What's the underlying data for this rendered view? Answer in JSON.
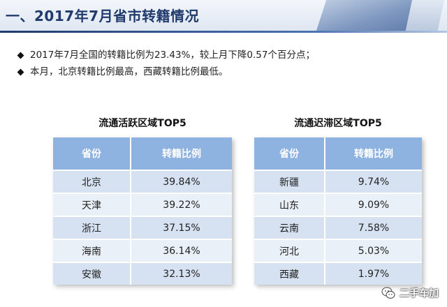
{
  "header": {
    "title": "一、2017年7月省市转籍情况"
  },
  "bullets": [
    "2017年7月全国的转籍比例为23.43%，较上月下降0.57个百分点；",
    "本月，北京转籍比例最高，西藏转籍比例最低。"
  ],
  "active_table": {
    "title": "流通活跃区域TOP5",
    "columns": [
      "省份",
      "转籍比例"
    ],
    "rows": [
      [
        "北京",
        "39.84%"
      ],
      [
        "天津",
        "39.22%"
      ],
      [
        "浙江",
        "37.15%"
      ],
      [
        "海南",
        "36.14%"
      ],
      [
        "安徽",
        "32.13%"
      ]
    ]
  },
  "stagnant_table": {
    "title": "流通迟滞区域TOP5",
    "columns": [
      "省份",
      "转籍比例"
    ],
    "rows": [
      [
        "新疆",
        "9.74%"
      ],
      [
        "山东",
        "9.09%"
      ],
      [
        "云南",
        "7.58%"
      ],
      [
        "河北",
        "5.03%"
      ],
      [
        "西藏",
        "1.97%"
      ]
    ]
  },
  "watermark": {
    "text": "二手车加",
    "icon": "wechat-icon"
  },
  "colors": {
    "header_text": "#1f3a6b",
    "table_header": "#8fb3e0",
    "row_odd": "#d6e2f2",
    "row_even": "#eaf0f8"
  }
}
